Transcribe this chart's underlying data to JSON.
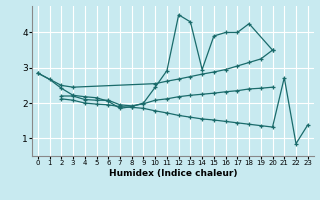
{
  "bg_color": "#c8eaf0",
  "line_color": "#1a6b6b",
  "grid_color": "#ffffff",
  "xlabel": "Humidex (Indice chaleur)",
  "xlim": [
    -0.5,
    23.5
  ],
  "ylim": [
    0.5,
    4.75
  ],
  "yticks": [
    1,
    2,
    3,
    4
  ],
  "xticks": [
    0,
    1,
    2,
    3,
    4,
    5,
    6,
    7,
    8,
    9,
    10,
    11,
    12,
    13,
    14,
    15,
    16,
    17,
    18,
    19,
    20,
    21,
    22,
    23
  ],
  "lines": [
    {
      "x": [
        0,
        1,
        2,
        3,
        4,
        5,
        6,
        7,
        8,
        9,
        10,
        11,
        12,
        13,
        14,
        15,
        16,
        17,
        18,
        20
      ],
      "y": [
        2.85,
        2.67,
        2.42,
        2.22,
        2.18,
        2.15,
        2.05,
        1.85,
        1.9,
        2.0,
        2.45,
        2.92,
        4.5,
        4.3,
        2.95,
        3.9,
        4.0,
        4.0,
        4.25,
        3.5
      ]
    },
    {
      "x": [
        0,
        2,
        3,
        10,
        11,
        12,
        13,
        14,
        15,
        16,
        17,
        18,
        19,
        20
      ],
      "y": [
        2.85,
        2.5,
        2.45,
        2.55,
        2.62,
        2.68,
        2.75,
        2.82,
        2.88,
        2.95,
        3.05,
        3.15,
        3.25,
        3.5
      ]
    },
    {
      "x": [
        2,
        3,
        4,
        5,
        6,
        7,
        8,
        9,
        10,
        11,
        12,
        13,
        14,
        15,
        16,
        17,
        18,
        19,
        20
      ],
      "y": [
        2.2,
        2.2,
        2.1,
        2.08,
        2.08,
        1.95,
        1.92,
        1.98,
        2.08,
        2.12,
        2.18,
        2.22,
        2.25,
        2.28,
        2.32,
        2.35,
        2.4,
        2.42,
        2.45
      ]
    },
    {
      "x": [
        2,
        3,
        4,
        5,
        6,
        7,
        8,
        9,
        10,
        11,
        12,
        13,
        14,
        15,
        16,
        17,
        18,
        19,
        20,
        21,
        22,
        23
      ],
      "y": [
        2.12,
        2.08,
        2.0,
        1.97,
        1.95,
        1.9,
        1.88,
        1.85,
        1.78,
        1.72,
        1.65,
        1.6,
        1.55,
        1.52,
        1.48,
        1.44,
        1.4,
        1.36,
        1.32,
        2.72,
        0.85,
        1.38
      ]
    }
  ]
}
